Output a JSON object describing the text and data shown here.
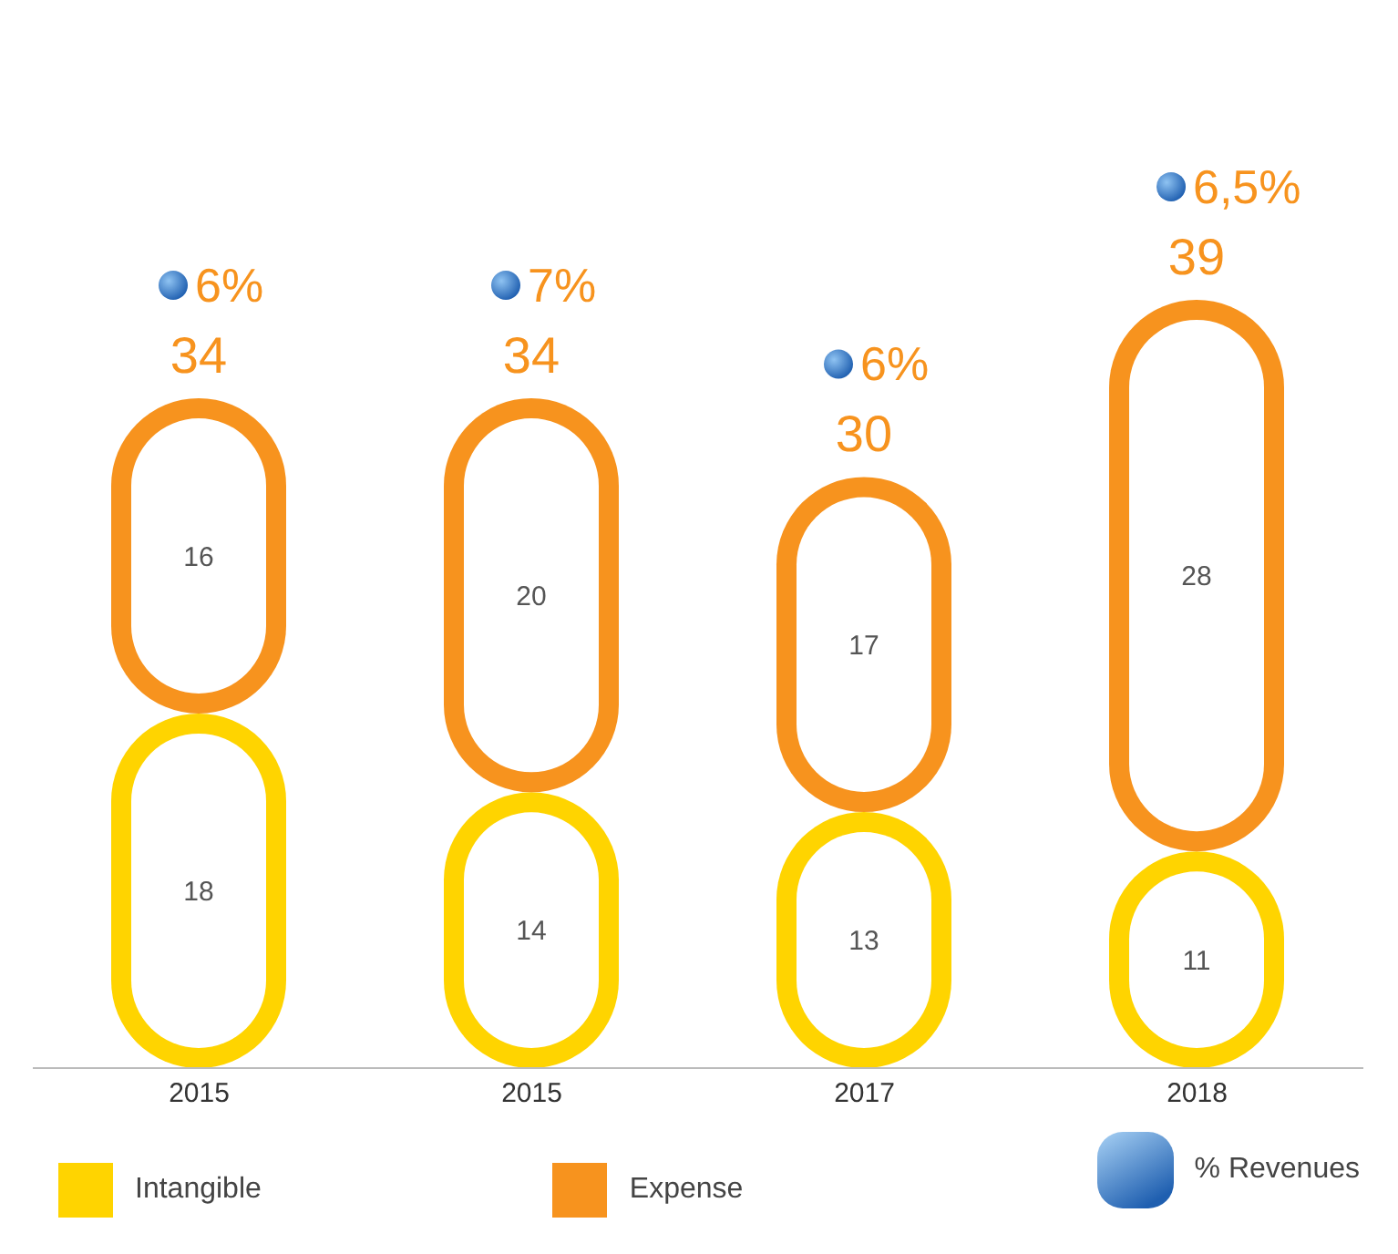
{
  "chart_data": {
    "type": "bar",
    "stacked": true,
    "data_labels": true,
    "legend": "bottom",
    "categories": [
      "2015",
      "2015",
      "2017",
      "2018"
    ],
    "series": [
      {
        "name": "Intangible",
        "color": "#ffd400",
        "values": [
          18,
          14,
          13,
          11
        ]
      },
      {
        "name": "Expense",
        "color": "#f7931e",
        "values": [
          16,
          20,
          17,
          28
        ]
      }
    ],
    "totals": [
      "34",
      "34",
      "30",
      "39"
    ],
    "annotations": [
      "6%",
      "7%",
      "6%",
      "6,5%",
      "% Revenues"
    ]
  }
}
